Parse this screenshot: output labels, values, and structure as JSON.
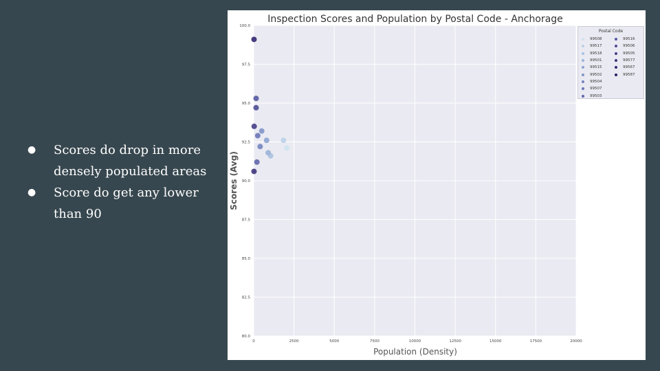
{
  "slide": {
    "bullets": [
      "Scores do drop in more densely populated areas",
      "Score do get any lower than 90"
    ]
  },
  "chart_data": {
    "type": "scatter",
    "title": "Inspection Scores and Population by Postal Code - Anchorage",
    "xlabel": "Population (Density)",
    "ylabel": "Scores (Avg)",
    "xlim": [
      0,
      20000
    ],
    "ylim": [
      80.0,
      100.0
    ],
    "x_ticks": [
      "0",
      "2500",
      "5000",
      "7500",
      "10000",
      "12500",
      "15000",
      "17500",
      "20000"
    ],
    "y_ticks": [
      "80.0",
      "82.5",
      "85.0",
      "87.5",
      "90.0",
      "92.5",
      "95.0",
      "97.5",
      "100.0"
    ],
    "grid": true,
    "legend": {
      "title": "Postal Code",
      "placement": "top-right outside"
    },
    "series": [
      {
        "name": "99508",
        "color": "#cfe3ee",
        "points": [
          [
            2050,
            92.1
          ]
        ]
      },
      {
        "name": "99517",
        "color": "#bcd3e8",
        "points": [
          [
            1850,
            92.6
          ]
        ]
      },
      {
        "name": "99518",
        "color": "#a9c2df",
        "points": [
          [
            1050,
            91.6
          ]
        ]
      },
      {
        "name": "99501",
        "color": "#9bb3d8",
        "points": [
          [
            900,
            91.8
          ]
        ]
      },
      {
        "name": "99515",
        "color": "#8da4d0",
        "points": [
          [
            800,
            92.6
          ]
        ]
      },
      {
        "name": "99502",
        "color": "#8095c8",
        "points": [
          [
            500,
            93.2
          ]
        ]
      },
      {
        "name": "99504",
        "color": "#7486c0",
        "points": [
          [
            400,
            92.2
          ]
        ]
      },
      {
        "name": "99507",
        "color": "#6a77b6",
        "points": [
          [
            250,
            92.9
          ]
        ]
      },
      {
        "name": "99503",
        "color": "#6068ab",
        "points": [
          [
            200,
            91.2
          ]
        ]
      },
      {
        "name": "99516",
        "color": "#575aa0",
        "points": [
          [
            150,
            95.3
          ]
        ]
      },
      {
        "name": "99506",
        "color": "#4f4c94",
        "points": [
          [
            150,
            94.7
          ]
        ]
      },
      {
        "name": "99505",
        "color": "#463f88",
        "points": [
          [
            30,
            93.5
          ]
        ]
      },
      {
        "name": "99577",
        "color": "#3d337b",
        "points": [
          [
            20,
            90.6
          ]
        ]
      },
      {
        "name": "99567",
        "color": "#332870",
        "points": [
          [
            20,
            99.1
          ]
        ]
      },
      {
        "name": "99587",
        "color": "#2a1f63",
        "points": []
      }
    ]
  }
}
